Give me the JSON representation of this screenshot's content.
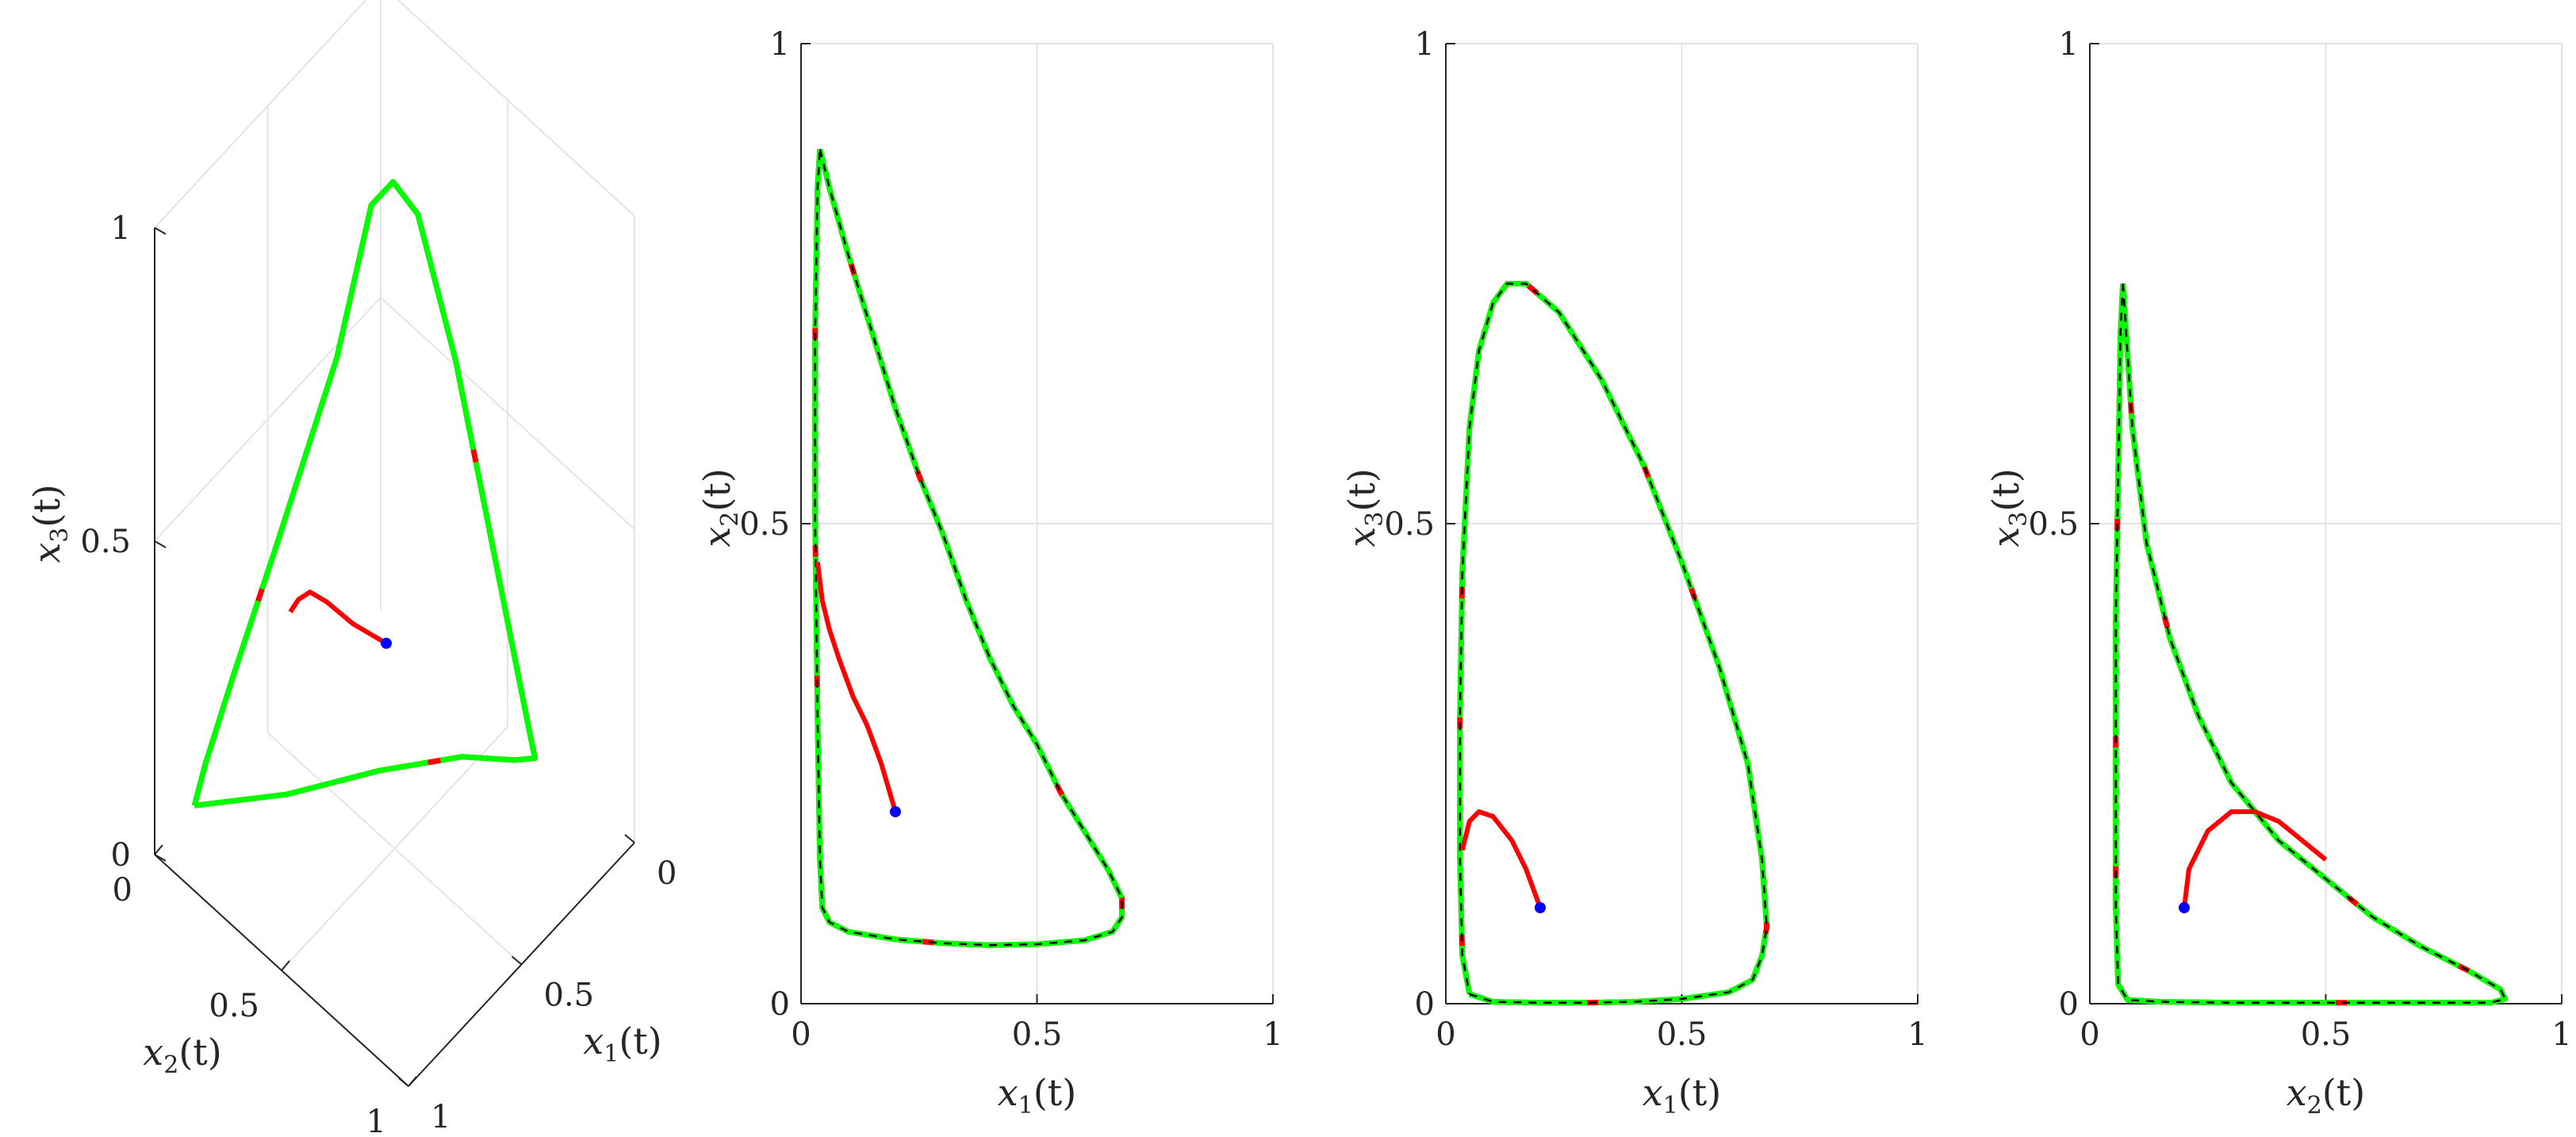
{
  "colors": {
    "limit_cycle": "#00ff00",
    "transient": "#ff0000",
    "dashed_overlay": "#000000",
    "start_point": "#0000ff",
    "axes": "#262626",
    "grid": "#e4e4e4"
  },
  "chart_data": [
    {
      "type": "line3d",
      "xlabel": "x_1(t)",
      "ylabel": "x_2(t)",
      "zlabel": "x_3(t)",
      "xlim": [
        0,
        1
      ],
      "ylim": [
        0,
        1
      ],
      "zlim": [
        0,
        1
      ],
      "xticks": [
        "0",
        "0.5",
        "1"
      ],
      "yticks": [
        "0",
        "0.5",
        "1"
      ],
      "zticks": [
        "0",
        "0.5",
        "1"
      ],
      "grid": true,
      "start_point": [
        0.2,
        0.2,
        0.1
      ],
      "limit_cycle": [
        [
          0.05,
          0.88,
          0.05
        ],
        [
          0.2,
          0.64,
          0.03
        ],
        [
          0.35,
          0.4,
          0.03
        ],
        [
          0.5,
          0.2,
          0.03
        ],
        [
          0.62,
          0.1,
          0.03
        ],
        [
          0.67,
          0.07,
          0.04
        ],
        [
          0.62,
          0.06,
          0.1
        ],
        [
          0.5,
          0.06,
          0.3
        ],
        [
          0.35,
          0.06,
          0.55
        ],
        [
          0.2,
          0.06,
          0.73
        ],
        [
          0.12,
          0.08,
          0.76
        ],
        [
          0.07,
          0.12,
          0.72
        ],
        [
          0.05,
          0.25,
          0.52
        ],
        [
          0.04,
          0.5,
          0.32
        ],
        [
          0.04,
          0.7,
          0.18
        ],
        [
          0.04,
          0.82,
          0.09
        ],
        [
          0.05,
          0.88,
          0.05
        ]
      ],
      "transient": [
        [
          0.2,
          0.2,
          0.1
        ],
        [
          0.14,
          0.28,
          0.14
        ],
        [
          0.09,
          0.34,
          0.18
        ],
        [
          0.06,
          0.38,
          0.2
        ],
        [
          0.05,
          0.42,
          0.2
        ],
        [
          0.045,
          0.45,
          0.19
        ]
      ]
    },
    {
      "type": "line",
      "xlabel": "x_1(t)",
      "ylabel": "x_2(t)",
      "xlim": [
        0,
        1
      ],
      "ylim": [
        0,
        1
      ],
      "xticks": [
        "0",
        "0.5",
        "1"
      ],
      "yticks": [
        "0",
        "0.5",
        "1"
      ],
      "grid": true,
      "start_point": [
        0.2,
        0.2
      ],
      "limit_cycle": [
        [
          0.04,
          0.89
        ],
        [
          0.06,
          0.85
        ],
        [
          0.1,
          0.78
        ],
        [
          0.15,
          0.7
        ],
        [
          0.2,
          0.62
        ],
        [
          0.25,
          0.55
        ],
        [
          0.3,
          0.49
        ],
        [
          0.35,
          0.42
        ],
        [
          0.4,
          0.36
        ],
        [
          0.45,
          0.31
        ],
        [
          0.5,
          0.27
        ],
        [
          0.55,
          0.22
        ],
        [
          0.6,
          0.18
        ],
        [
          0.65,
          0.14
        ],
        [
          0.68,
          0.11
        ],
        [
          0.68,
          0.09
        ],
        [
          0.66,
          0.075
        ],
        [
          0.6,
          0.066
        ],
        [
          0.5,
          0.062
        ],
        [
          0.4,
          0.061
        ],
        [
          0.3,
          0.063
        ],
        [
          0.2,
          0.067
        ],
        [
          0.1,
          0.075
        ],
        [
          0.06,
          0.085
        ],
        [
          0.045,
          0.1
        ],
        [
          0.04,
          0.15
        ],
        [
          0.035,
          0.3
        ],
        [
          0.03,
          0.5
        ],
        [
          0.03,
          0.7
        ],
        [
          0.035,
          0.85
        ],
        [
          0.04,
          0.89
        ]
      ],
      "transient": [
        [
          0.2,
          0.2
        ],
        [
          0.17,
          0.25
        ],
        [
          0.14,
          0.29
        ],
        [
          0.11,
          0.32
        ],
        [
          0.08,
          0.36
        ],
        [
          0.06,
          0.39
        ],
        [
          0.045,
          0.42
        ],
        [
          0.035,
          0.46
        ]
      ]
    },
    {
      "type": "line",
      "xlabel": "x_1(t)",
      "ylabel": "x_3(t)",
      "xlim": [
        0,
        1
      ],
      "ylim": [
        0,
        1
      ],
      "xticks": [
        "0",
        "0.5",
        "1"
      ],
      "yticks": [
        "0",
        "0.5",
        "1"
      ],
      "grid": true,
      "start_point": [
        0.2,
        0.1
      ],
      "limit_cycle": [
        [
          0.05,
          0.01
        ],
        [
          0.1,
          0.002
        ],
        [
          0.2,
          0.001
        ],
        [
          0.3,
          0.001
        ],
        [
          0.4,
          0.002
        ],
        [
          0.5,
          0.005
        ],
        [
          0.6,
          0.012
        ],
        [
          0.65,
          0.025
        ],
        [
          0.67,
          0.05
        ],
        [
          0.68,
          0.08
        ],
        [
          0.67,
          0.15
        ],
        [
          0.64,
          0.25
        ],
        [
          0.58,
          0.35
        ],
        [
          0.5,
          0.46
        ],
        [
          0.42,
          0.56
        ],
        [
          0.33,
          0.65
        ],
        [
          0.24,
          0.72
        ],
        [
          0.17,
          0.75
        ],
        [
          0.13,
          0.75
        ],
        [
          0.1,
          0.73
        ],
        [
          0.07,
          0.68
        ],
        [
          0.05,
          0.6
        ],
        [
          0.035,
          0.45
        ],
        [
          0.03,
          0.3
        ],
        [
          0.03,
          0.15
        ],
        [
          0.035,
          0.05
        ],
        [
          0.05,
          0.01
        ]
      ],
      "transient": [
        [
          0.2,
          0.1
        ],
        [
          0.17,
          0.14
        ],
        [
          0.14,
          0.17
        ],
        [
          0.1,
          0.195
        ],
        [
          0.07,
          0.2
        ],
        [
          0.05,
          0.19
        ],
        [
          0.035,
          0.16
        ]
      ]
    },
    {
      "type": "line",
      "xlabel": "x_2(t)",
      "ylabel": "x_3(t)",
      "xlim": [
        0,
        1
      ],
      "ylim": [
        0,
        1
      ],
      "xticks": [
        "0",
        "0.5",
        "1"
      ],
      "yticks": [
        "0",
        "0.5",
        "1"
      ],
      "grid": true,
      "start_point": [
        0.2,
        0.1
      ],
      "limit_cycle": [
        [
          0.07,
          0.75
        ],
        [
          0.09,
          0.6
        ],
        [
          0.12,
          0.48
        ],
        [
          0.17,
          0.38
        ],
        [
          0.23,
          0.3
        ],
        [
          0.3,
          0.23
        ],
        [
          0.4,
          0.17
        ],
        [
          0.5,
          0.13
        ],
        [
          0.6,
          0.09
        ],
        [
          0.7,
          0.06
        ],
        [
          0.8,
          0.035
        ],
        [
          0.87,
          0.015
        ],
        [
          0.88,
          0.005
        ],
        [
          0.85,
          0.001
        ],
        [
          0.7,
          0.001
        ],
        [
          0.5,
          0.001
        ],
        [
          0.3,
          0.001
        ],
        [
          0.15,
          0.002
        ],
        [
          0.08,
          0.004
        ],
        [
          0.06,
          0.02
        ],
        [
          0.055,
          0.1
        ],
        [
          0.055,
          0.25
        ],
        [
          0.055,
          0.4
        ],
        [
          0.06,
          0.55
        ],
        [
          0.065,
          0.7
        ],
        [
          0.07,
          0.75
        ]
      ],
      "transient": [
        [
          0.2,
          0.1
        ],
        [
          0.21,
          0.14
        ],
        [
          0.25,
          0.18
        ],
        [
          0.3,
          0.2
        ],
        [
          0.35,
          0.2
        ],
        [
          0.4,
          0.19
        ],
        [
          0.45,
          0.17
        ],
        [
          0.5,
          0.15
        ]
      ]
    }
  ]
}
